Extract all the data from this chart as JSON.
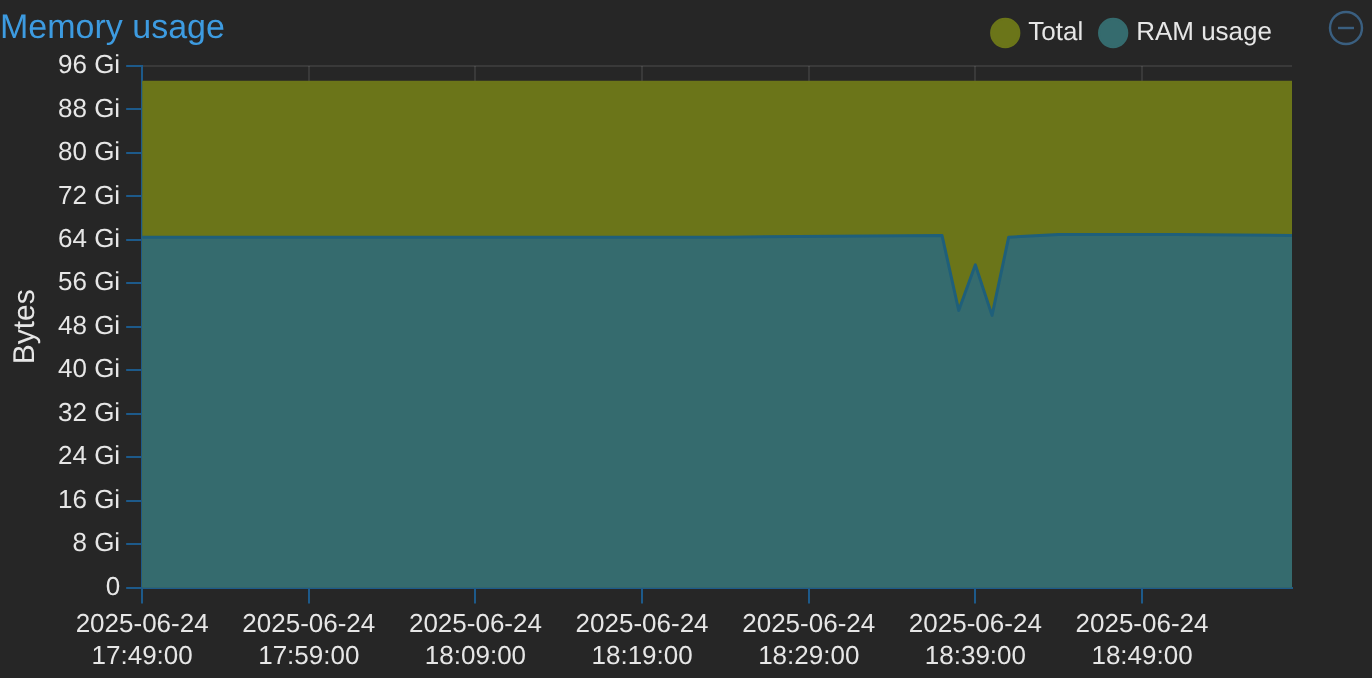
{
  "chart_data": {
    "type": "area",
    "title": "Memory usage",
    "ylabel": "Bytes",
    "series": [
      {
        "name": "Total",
        "color": "#6b7519",
        "x": [
          "2025-06-24T17:49",
          "2025-06-24T18:58"
        ],
        "values": [
          93,
          93
        ]
      },
      {
        "name": "RAM usage",
        "color": "#356b6e",
        "x": [
          "2025-06-24T17:49",
          "2025-06-24T18:00",
          "2025-06-24T18:12",
          "2025-06-24T18:24",
          "2025-06-24T18:37",
          "2025-06-24T18:38",
          "2025-06-24T18:39",
          "2025-06-24T18:40",
          "2025-06-24T18:41",
          "2025-06-24T18:44",
          "2025-06-24T18:51",
          "2025-06-24T18:58"
        ],
        "values": [
          64.5,
          64.5,
          64.5,
          64.5,
          64.8,
          51,
          59.4,
          50.1,
          64.5,
          65,
          65,
          64.8
        ]
      }
    ],
    "xlim": [
      "2025-06-24T17:49",
      "2025-06-24T18:58"
    ],
    "xticks": [
      {
        "value": "2025-06-24T17:49",
        "label": "2025-06-24 17:49:00"
      },
      {
        "value": "2025-06-24T17:59",
        "label": "2025-06-24 17:59:00"
      },
      {
        "value": "2025-06-24T18:09",
        "label": "2025-06-24 18:09:00"
      },
      {
        "value": "2025-06-24T18:19",
        "label": "2025-06-24 18:19:00"
      },
      {
        "value": "2025-06-24T18:29",
        "label": "2025-06-24 18:29:00"
      },
      {
        "value": "2025-06-24T18:39",
        "label": "2025-06-24 18:39:00"
      },
      {
        "value": "2025-06-24T18:49",
        "label": "2025-06-24 18:49:00"
      }
    ],
    "ylim": [
      0,
      96
    ],
    "yticks": [
      0,
      {
        "value": 8,
        "label": "8 Gi"
      },
      {
        "value": 16,
        "label": "16 Gi"
      },
      {
        "value": 24,
        "label": "24 Gi"
      },
      {
        "value": 32,
        "label": "32 Gi"
      },
      {
        "value": 40,
        "label": "40 Gi"
      },
      {
        "value": 48,
        "label": "48 Gi"
      },
      {
        "value": 56,
        "label": "56 Gi"
      },
      {
        "value": 64,
        "label": "64 Gi"
      },
      {
        "value": 72,
        "label": "72 Gi"
      },
      {
        "value": 80,
        "label": "80 Gi"
      },
      {
        "value": 88,
        "label": "88 Gi"
      },
      {
        "value": 96,
        "label": "96 Gi"
      }
    ],
    "grid": true,
    "legend": "top right",
    "marker": "none",
    "line_style": "solid"
  }
}
